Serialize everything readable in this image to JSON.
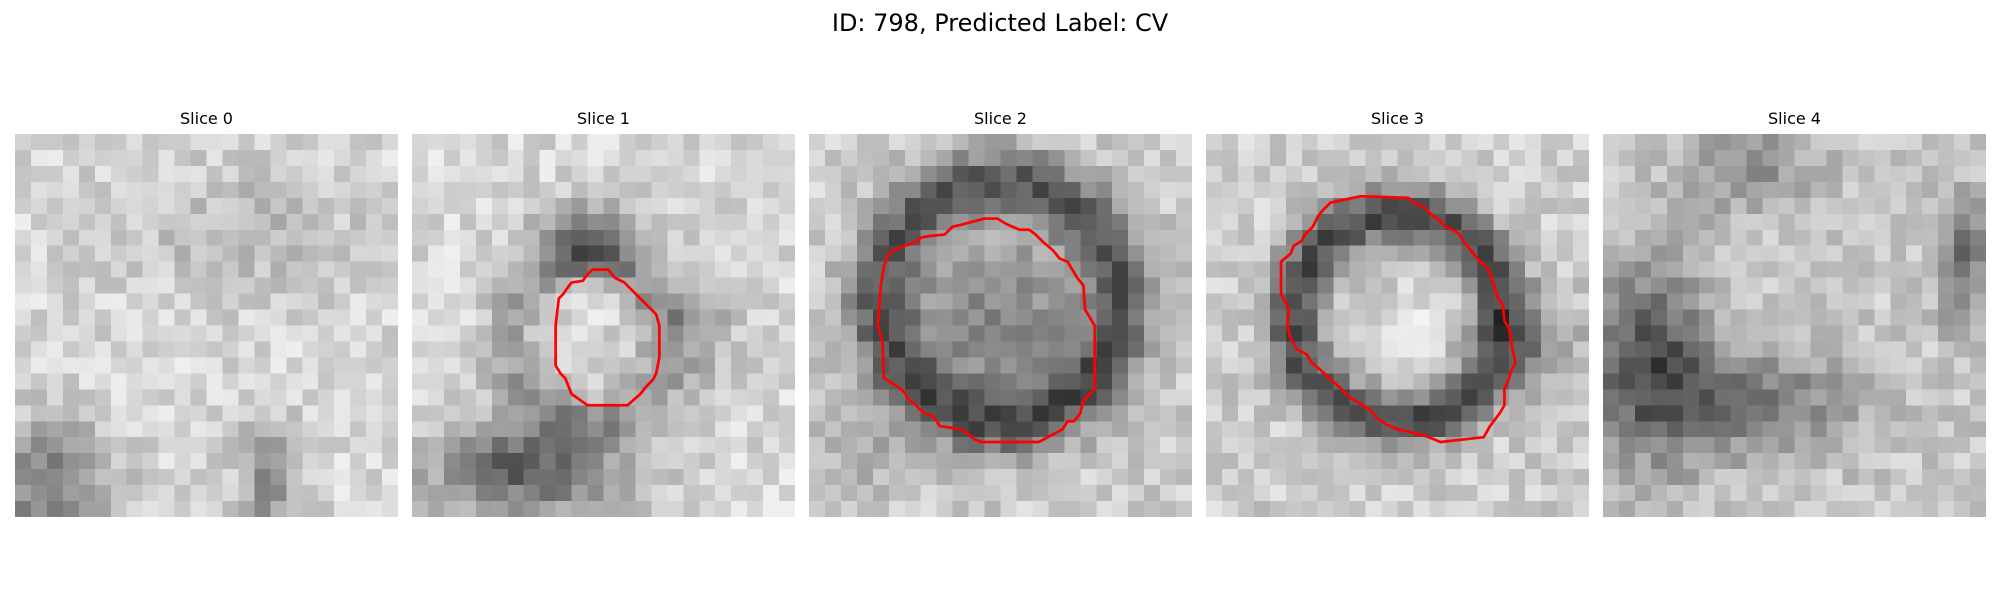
{
  "figure": {
    "title": "ID: 798, Predicted Label: CV"
  },
  "colors": {
    "contour": "#ff0000"
  },
  "panels": [
    {
      "label": "Slice 0",
      "has_contour": false
    },
    {
      "label": "Slice 1",
      "has_contour": true
    },
    {
      "label": "Slice 2",
      "has_contour": true
    },
    {
      "label": "Slice 3",
      "has_contour": true
    },
    {
      "label": "Slice 4",
      "has_contour": false
    }
  ]
}
